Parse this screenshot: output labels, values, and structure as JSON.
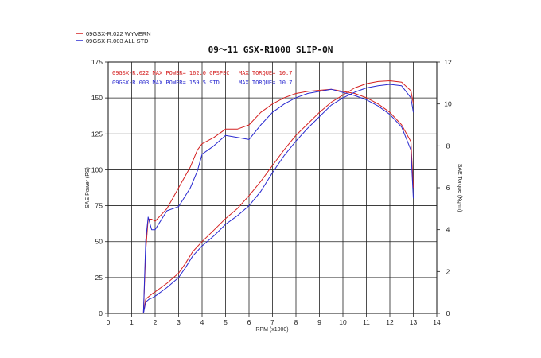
{
  "chart_data": {
    "type": "line",
    "title": "09～11 GSX-R1000 SLIP-ON",
    "xlabel": "RPM (x1000)",
    "ylabel_left": "SAE Power (PS)",
    "ylabel_right": "SAE Torque (Kg-m)",
    "xlim": [
      0,
      14
    ],
    "ylim_left": [
      0,
      175
    ],
    "ylim_right": [
      0,
      12
    ],
    "x_ticks": [
      "0",
      "1",
      "2",
      "3",
      "4",
      "5",
      "6",
      "7",
      "8",
      "9",
      "10",
      "11",
      "12",
      "13",
      "14"
    ],
    "y_left_ticks": [
      "0",
      "25",
      "50",
      "75",
      "100",
      "125",
      "150",
      "175"
    ],
    "y_right_ticks": [
      "0",
      "2",
      "4",
      "6",
      "8",
      "10",
      "12"
    ],
    "grid": true,
    "legend_position": "top-left",
    "legend": [
      {
        "label": "09GSX-R.022  WYVERN",
        "color": "#d42020"
      },
      {
        "label": "09GSX-R.003  ALL STD",
        "color": "#2a2ad0"
      }
    ],
    "annotations": [
      {
        "power_text": "09GSX-R.022  MAX POWER= 162.0  GPSPEC",
        "torque_text": "MAX TORQUE= 10.7",
        "color": "#d42020"
      },
      {
        "power_text": "09GSX-R.003  MAX POWER= 159.5  STD",
        "torque_text": "MAX TORQUE= 10.7",
        "color": "#2a2ad0"
      }
    ],
    "series": [
      {
        "name": "09GSX-R.022  WYVERN",
        "quantity": "power",
        "color": "#d42020",
        "x": [
          1.5,
          1.6,
          1.75,
          1.9,
          2.0,
          2.5,
          3.0,
          3.3,
          3.6,
          4.0,
          4.5,
          5.0,
          5.5,
          6.0,
          6.5,
          7.0,
          7.5,
          8.0,
          8.5,
          9.0,
          9.5,
          10.0,
          10.5,
          11.0,
          11.5,
          12.0,
          12.5,
          12.9,
          13.0
        ],
        "values": [
          0,
          10,
          12,
          14,
          15,
          21,
          28,
          35,
          43,
          50,
          58,
          66,
          73,
          82,
          92,
          103,
          114,
          124,
          132,
          140,
          147,
          152,
          157,
          160,
          161.5,
          162,
          161,
          155,
          146
        ]
      },
      {
        "name": "09GSX-R.022  WYVERN",
        "quantity": "torque",
        "color": "#d42020",
        "x": [
          1.5,
          1.6,
          1.7,
          1.85,
          2.0,
          2.5,
          3.0,
          3.5,
          3.8,
          4.0,
          4.5,
          5.0,
          5.5,
          6.0,
          6.5,
          7.0,
          7.5,
          8.0,
          8.5,
          9.0,
          9.5,
          10.0,
          10.5,
          11.0,
          11.5,
          12.0,
          12.5,
          12.9,
          13.0
        ],
        "values": [
          0,
          3.0,
          4.5,
          4.5,
          4.4,
          5.0,
          6.0,
          7.0,
          7.8,
          8.1,
          8.4,
          8.8,
          8.8,
          9.0,
          9.6,
          10.0,
          10.3,
          10.5,
          10.6,
          10.65,
          10.7,
          10.6,
          10.5,
          10.3,
          10.0,
          9.6,
          9.0,
          8.2,
          6.0
        ]
      },
      {
        "name": "09GSX-R.003  ALL STD",
        "quantity": "power",
        "color": "#2a2ad0",
        "x": [
          1.5,
          1.6,
          1.75,
          1.9,
          2.0,
          2.5,
          3.0,
          3.3,
          3.6,
          4.0,
          4.5,
          5.0,
          5.5,
          6.0,
          6.5,
          7.0,
          7.5,
          8.0,
          8.5,
          9.0,
          9.5,
          10.0,
          10.5,
          11.0,
          11.5,
          12.0,
          12.5,
          12.9,
          13.0
        ],
        "values": [
          0,
          8,
          10,
          11,
          12,
          18,
          25,
          32,
          40,
          47,
          54,
          62,
          68,
          75,
          85,
          98,
          110,
          120,
          129,
          137,
          145,
          150,
          154,
          157,
          158.5,
          159.5,
          158.5,
          150,
          140
        ]
      },
      {
        "name": "09GSX-R.003  ALL STD",
        "quantity": "torque",
        "color": "#2a2ad0",
        "x": [
          1.5,
          1.6,
          1.7,
          1.85,
          2.0,
          2.5,
          3.0,
          3.5,
          3.8,
          4.0,
          4.5,
          5.0,
          5.5,
          6.0,
          6.5,
          7.0,
          7.5,
          8.0,
          8.5,
          9.0,
          9.5,
          10.0,
          10.5,
          11.0,
          11.5,
          12.0,
          12.5,
          12.9,
          13.0
        ],
        "values": [
          0,
          3.5,
          4.6,
          4.0,
          4.0,
          4.9,
          5.1,
          6.0,
          6.8,
          7.6,
          8.0,
          8.5,
          8.4,
          8.3,
          9.0,
          9.6,
          10.0,
          10.3,
          10.5,
          10.6,
          10.7,
          10.55,
          10.4,
          10.2,
          9.9,
          9.5,
          8.9,
          7.8,
          5.5
        ]
      }
    ]
  }
}
